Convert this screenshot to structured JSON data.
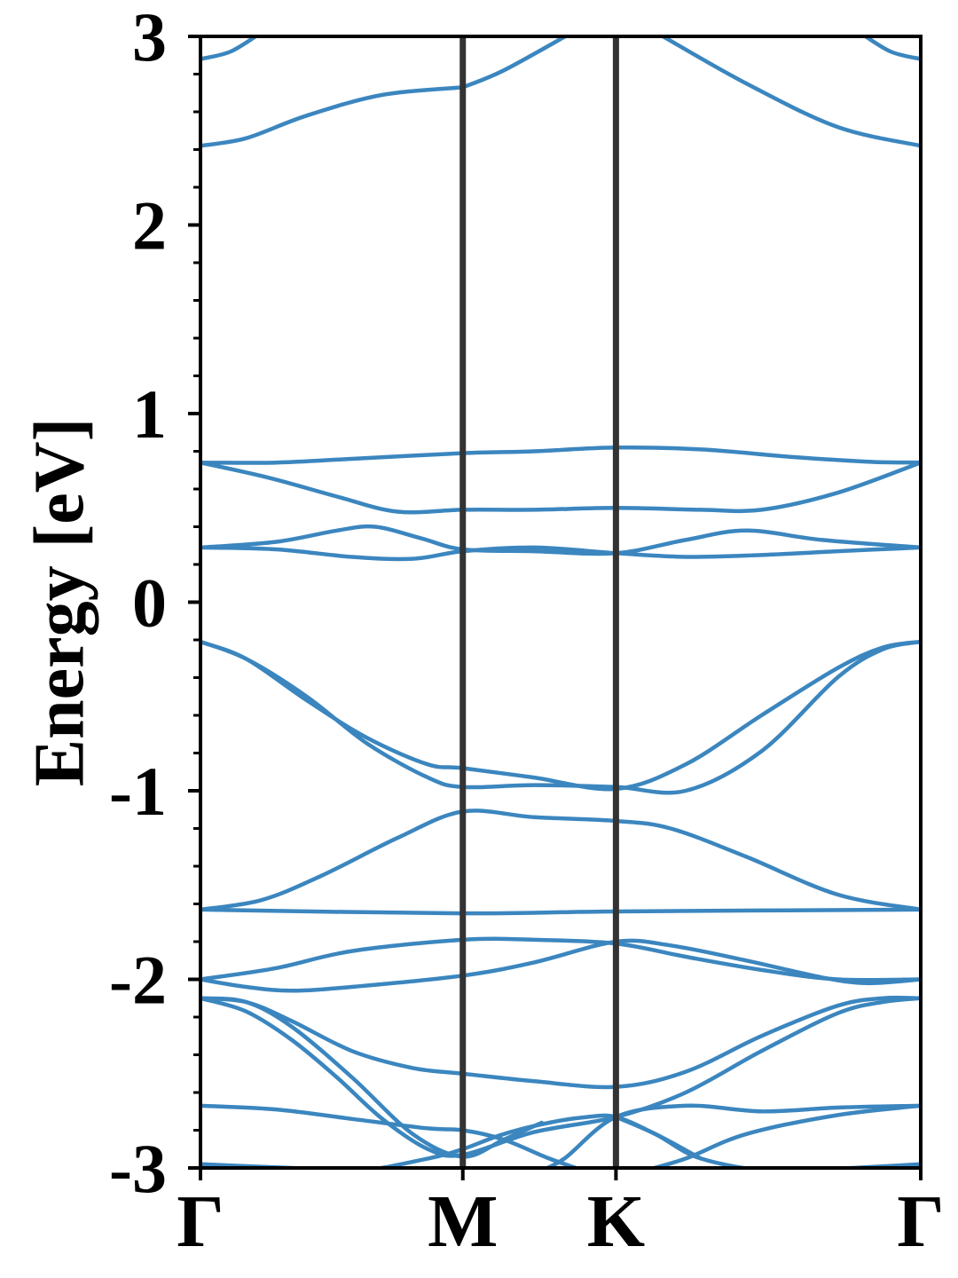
{
  "chart_data": {
    "type": "line",
    "title": "",
    "ylabel": "Energy [eV]",
    "xlabel": "",
    "ylim": [
      -3,
      3
    ],
    "xlim": [
      0,
      4.75
    ],
    "yticks": [
      3,
      2,
      1,
      0,
      -1,
      -2,
      -3
    ],
    "ytick_labels": [
      "3",
      "2",
      "1",
      "0",
      "-1",
      "-2",
      "-3"
    ],
    "kpoints": [
      {
        "label": "Γ",
        "x": 0
      },
      {
        "label": "M",
        "x": 1.73
      },
      {
        "label": "K",
        "x": 2.74
      },
      {
        "label": "Γ",
        "x": 4.75
      }
    ],
    "grid": false,
    "line_color": "#3b86bf",
    "divider_color": "#333333",
    "series": [
      {
        "x": [
          0,
          0.2,
          0.4
        ],
        "values": [
          2.88,
          2.92,
          3.02
        ]
      },
      {
        "x": [
          4.35,
          4.55,
          4.75
        ],
        "values": [
          3.02,
          2.92,
          2.88
        ]
      },
      {
        "x": [
          1.73,
          2.0,
          2.45
        ],
        "values": [
          2.73,
          2.82,
          3.02
        ]
      },
      {
        "x": [
          3.05,
          3.6,
          4.2,
          4.75
        ],
        "values": [
          3.0,
          2.75,
          2.52,
          2.42
        ]
      },
      {
        "x": [
          0,
          0.3,
          0.7,
          1.2,
          1.73
        ],
        "values": [
          2.42,
          2.46,
          2.58,
          2.69,
          2.73
        ]
      },
      {
        "x": [
          0,
          0.5,
          1.0,
          1.73,
          2.2,
          2.74,
          3.3,
          3.9,
          4.4,
          4.75
        ],
        "values": [
          0.74,
          0.74,
          0.76,
          0.79,
          0.8,
          0.82,
          0.81,
          0.77,
          0.745,
          0.74
        ]
      },
      {
        "x": [
          0,
          0.45,
          0.9,
          1.3,
          1.73,
          2.2,
          2.74,
          3.3,
          3.7,
          4.2,
          4.75
        ],
        "values": [
          0.74,
          0.66,
          0.56,
          0.48,
          0.49,
          0.49,
          0.5,
          0.49,
          0.49,
          0.58,
          0.74
        ]
      },
      {
        "x": [
          0,
          0.5,
          0.9,
          1.15,
          1.45,
          1.73,
          2.2,
          2.74,
          3.2,
          3.6,
          4.1,
          4.75
        ],
        "values": [
          0.29,
          0.32,
          0.38,
          0.4,
          0.34,
          0.28,
          0.27,
          0.26,
          0.33,
          0.38,
          0.33,
          0.29
        ]
      },
      {
        "x": [
          0,
          0.5,
          1.0,
          1.4,
          1.73,
          2.2,
          2.74,
          3.2,
          3.7,
          4.2,
          4.75
        ],
        "values": [
          0.29,
          0.28,
          0.24,
          0.23,
          0.27,
          0.29,
          0.26,
          0.24,
          0.25,
          0.27,
          0.29
        ]
      },
      {
        "x": [
          0,
          0.3,
          0.7,
          1.1,
          1.5,
          1.73,
          2.2,
          2.74,
          3.2,
          3.7,
          4.2,
          4.5,
          4.75
        ],
        "values": [
          -0.21,
          -0.3,
          -0.5,
          -0.75,
          -0.93,
          -0.98,
          -0.97,
          -0.98,
          -1.0,
          -0.79,
          -0.4,
          -0.25,
          -0.21
        ]
      },
      {
        "x": [
          0,
          0.3,
          0.7,
          1.1,
          1.5,
          1.73,
          2.2,
          2.74,
          3.2,
          3.7,
          4.2,
          4.5,
          4.75
        ],
        "values": [
          -0.21,
          -0.3,
          -0.52,
          -0.72,
          -0.86,
          -0.88,
          -0.93,
          -0.99,
          -0.86,
          -0.6,
          -0.35,
          -0.24,
          -0.21
        ]
      },
      {
        "x": [
          0,
          0.4,
          0.8,
          1.3,
          1.73,
          2.2,
          2.74,
          3.1,
          3.6,
          4.2,
          4.75
        ],
        "values": [
          -1.63,
          -1.58,
          -1.45,
          -1.25,
          -1.11,
          -1.14,
          -1.16,
          -1.2,
          -1.35,
          -1.55,
          -1.63
        ]
      },
      {
        "x": [
          0,
          1.73,
          2.74,
          4.75
        ],
        "values": [
          -1.63,
          -1.65,
          -1.64,
          -1.63
        ]
      },
      {
        "x": [
          0,
          0.5,
          1.0,
          1.73,
          2.2,
          2.74,
          3.2,
          3.7,
          4.2,
          4.75
        ],
        "values": [
          -2.0,
          -1.94,
          -1.85,
          -1.79,
          -1.79,
          -1.81,
          -1.88,
          -1.95,
          -2.0,
          -2.0
        ]
      },
      {
        "x": [
          0,
          0.3,
          0.6,
          1.0,
          1.73,
          2.2,
          2.74,
          3.1,
          3.6,
          4.1,
          4.4,
          4.75
        ],
        "values": [
          -2.0,
          -2.04,
          -2.06,
          -2.04,
          -1.98,
          -1.91,
          -1.8,
          -1.82,
          -1.9,
          -1.99,
          -2.02,
          -2.0
        ]
      },
      {
        "x": [
          0,
          0.3,
          0.6,
          1.0,
          1.4,
          1.73,
          2.2,
          2.74,
          3.2,
          3.7,
          4.2,
          4.5,
          4.75
        ],
        "values": [
          -2.1,
          -2.12,
          -2.22,
          -2.38,
          -2.47,
          -2.5,
          -2.54,
          -2.57,
          -2.49,
          -2.3,
          -2.14,
          -2.1,
          -2.1
        ]
      },
      {
        "x": [
          0,
          0.3,
          0.6,
          0.9,
          1.2,
          1.5,
          1.73,
          2.2,
          2.74,
          3.2,
          3.7,
          4.2,
          4.5,
          4.75
        ],
        "values": [
          -2.1,
          -2.17,
          -2.32,
          -2.52,
          -2.74,
          -2.9,
          -2.93,
          -2.81,
          -2.73,
          -2.6,
          -2.38,
          -2.18,
          -2.12,
          -2.1
        ]
      },
      {
        "x": [
          0,
          0.3,
          0.6,
          1.0,
          1.4,
          1.73,
          2.0,
          2.25
        ],
        "values": [
          -2.1,
          -2.12,
          -2.25,
          -2.52,
          -2.82,
          -2.94,
          -2.85,
          -2.76
        ]
      },
      {
        "x": [
          0,
          0.5,
          1.0,
          1.5,
          1.73,
          2.0,
          2.3,
          2.55
        ],
        "values": [
          -2.67,
          -2.69,
          -2.74,
          -2.79,
          -2.8,
          -2.85,
          -2.95,
          -3.02
        ]
      },
      {
        "x": [
          2.23,
          2.4,
          2.74,
          3.2,
          3.7,
          4.2,
          4.75
        ],
        "values": [
          -3.02,
          -2.95,
          -2.73,
          -2.67,
          -2.7,
          -2.68,
          -2.67
        ]
      },
      {
        "x": [
          0,
          0.5,
          1.0,
          1.5,
          1.73,
          2.0,
          2.3,
          2.55,
          2.74,
          3.0,
          3.3
        ],
        "values": [
          -2.98,
          -3.0,
          -3.02,
          -2.95,
          -2.9,
          -2.82,
          -2.76,
          -2.73,
          -2.73,
          -2.82,
          -2.95
        ]
      },
      {
        "x": [
          2.74,
          3.0,
          3.3,
          3.8,
          4.3,
          4.75
        ],
        "values": [
          -2.73,
          -2.82,
          -2.95,
          -3.02,
          -3.0,
          -2.98
        ]
      },
      {
        "x": [
          2.9,
          3.2,
          3.6,
          4.2,
          4.75
        ],
        "values": [
          -3.02,
          -2.95,
          -2.82,
          -2.72,
          -2.67
        ]
      },
      {
        "x": [
          0,
          0.6,
          1.2
        ],
        "values": [
          -2.98,
          -3.0,
          -3.02
        ]
      }
    ]
  }
}
